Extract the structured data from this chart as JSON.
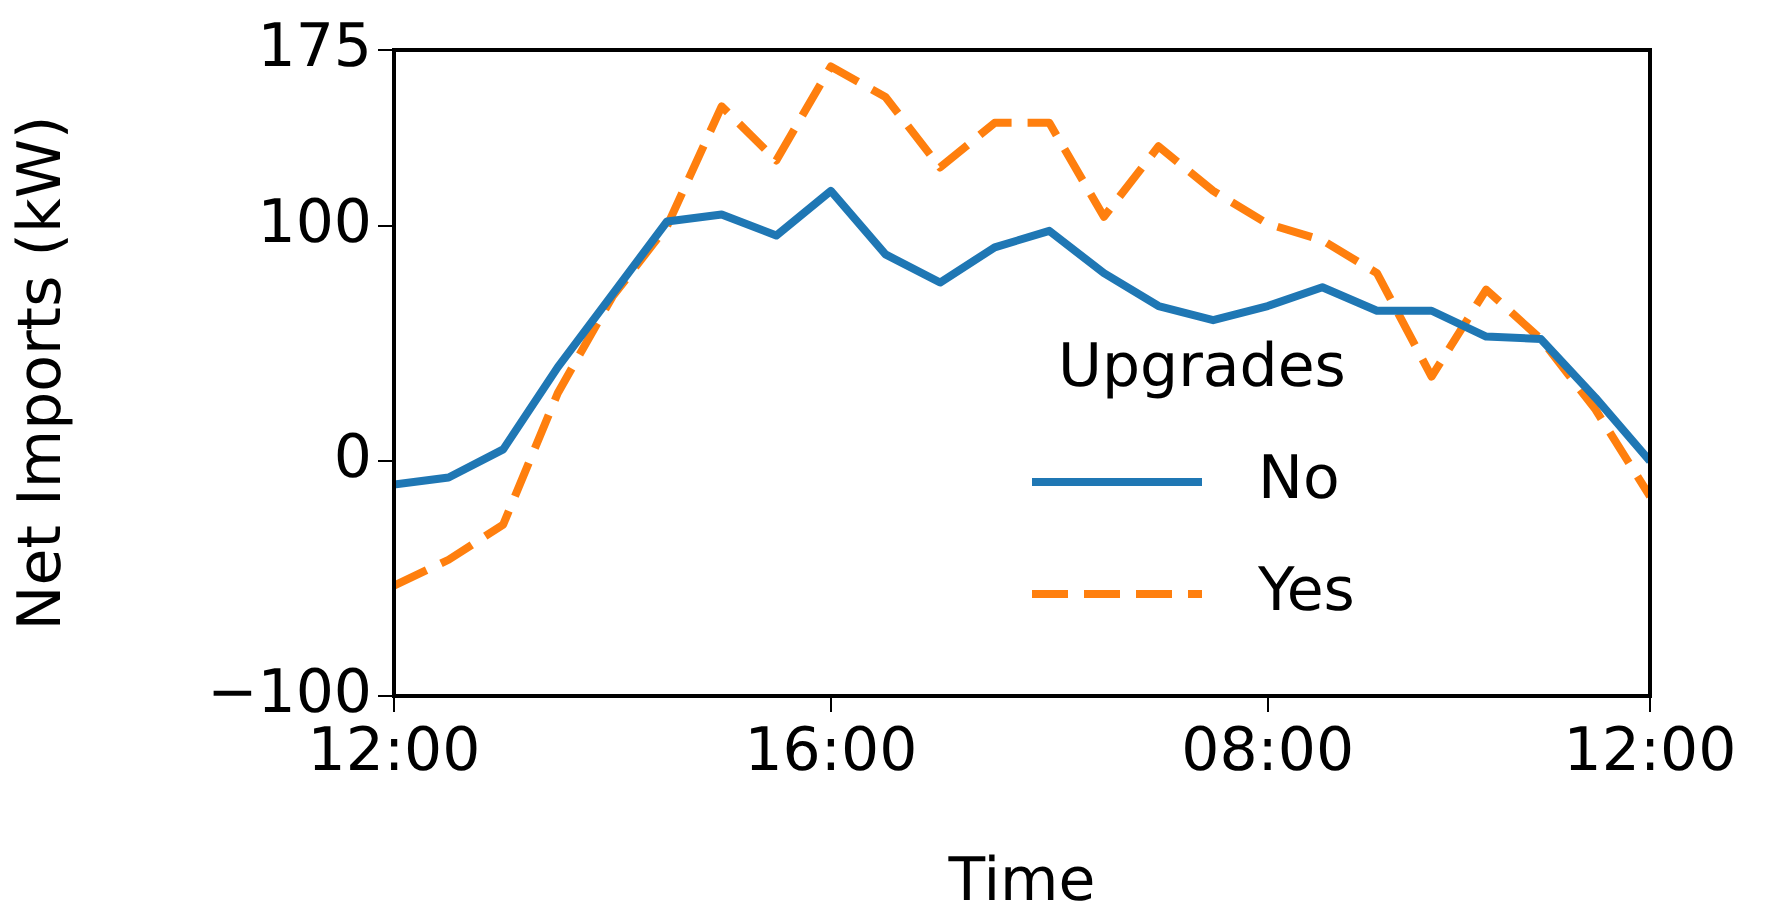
{
  "chart_data": {
    "type": "line",
    "xlabel": "Time",
    "ylabel": "Net Imports (kW)",
    "legend_title": "Upgrades",
    "legend": "center",
    "grid": false,
    "categories": [
      "12:00",
      null,
      null,
      null,
      null,
      null,
      null,
      null,
      "16:00",
      null,
      null,
      null,
      null,
      null,
      null,
      null,
      "08:00",
      null,
      null,
      null,
      null,
      null,
      null,
      "12:00"
    ],
    "ylim": [
      -100,
      175
    ],
    "yticks": [
      -100,
      0,
      100,
      175
    ],
    "series": [
      {
        "name": "No",
        "color": "#1f77b4",
        "line_style": "solid",
        "values": [
          -10,
          -7,
          5,
          40,
          71,
          102,
          105,
          96,
          115,
          88,
          76,
          91,
          98,
          80,
          66,
          60,
          66,
          74,
          64,
          64,
          53,
          52,
          27,
          0
        ]
      },
      {
        "name": "Yes",
        "color": "#ff7f0e",
        "line_style": "dashed",
        "values": [
          -53,
          -42,
          -27,
          29,
          70,
          100,
          151,
          128,
          168,
          155,
          125,
          144,
          144,
          104,
          134,
          115,
          101,
          94,
          80,
          36,
          73,
          52,
          22,
          -15
        ]
      }
    ]
  }
}
